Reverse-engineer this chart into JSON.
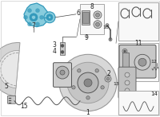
{
  "bg_color": "#ffffff",
  "highlight_color": "#3399bb",
  "highlight_fill": "#88ccdd",
  "line_color": "#444444",
  "light_gray": "#c8c8c8",
  "mid_gray": "#999999",
  "dark_gray": "#555555",
  "box_edge": "#999999",
  "very_light": "#e8e8e8",
  "figsize": [
    2.0,
    1.47
  ],
  "dpi": 100
}
